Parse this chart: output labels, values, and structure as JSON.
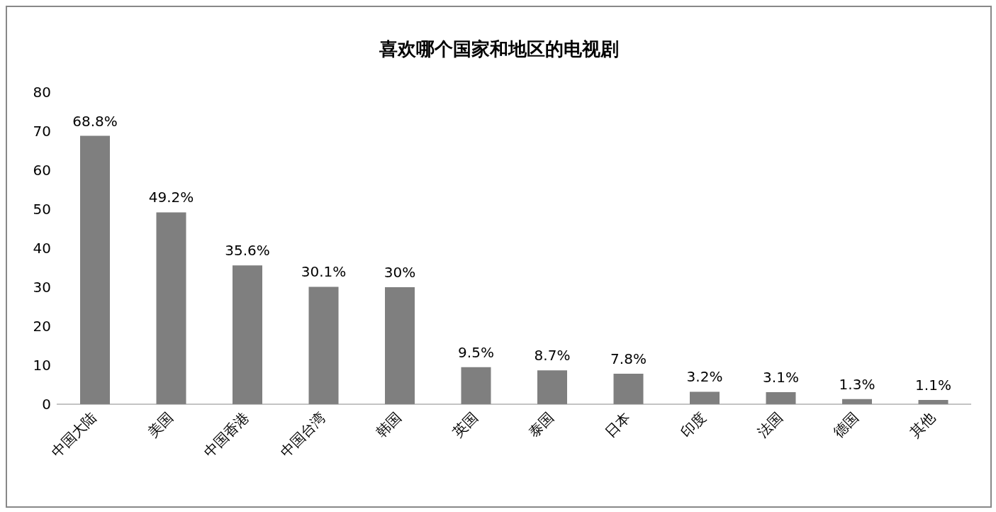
{
  "chart_data": {
    "type": "bar",
    "title": "喜欢哪个国家和地区的电视剧",
    "categories": [
      "中国大陆",
      "美国",
      "中国香港",
      "中国台湾",
      "韩国",
      "英国",
      "泰国",
      "日本",
      "印度",
      "法国",
      "德国",
      "其他"
    ],
    "values": [
      68.8,
      49.2,
      35.6,
      30.1,
      30,
      9.5,
      8.7,
      7.8,
      3.2,
      3.1,
      1.3,
      1.1
    ],
    "value_labels": [
      "68.8%",
      "49.2%",
      "35.6%",
      "30.1%",
      "30%",
      "9.5%",
      "8.7%",
      "7.8%",
      "3.2%",
      "3.1%",
      "1.3%",
      "1.1%"
    ],
    "color": "#7f7f7f",
    "ylim": [
      0,
      80
    ],
    "yticks": [
      0,
      10,
      20,
      30,
      40,
      50,
      60,
      70,
      80
    ],
    "grid": false
  }
}
